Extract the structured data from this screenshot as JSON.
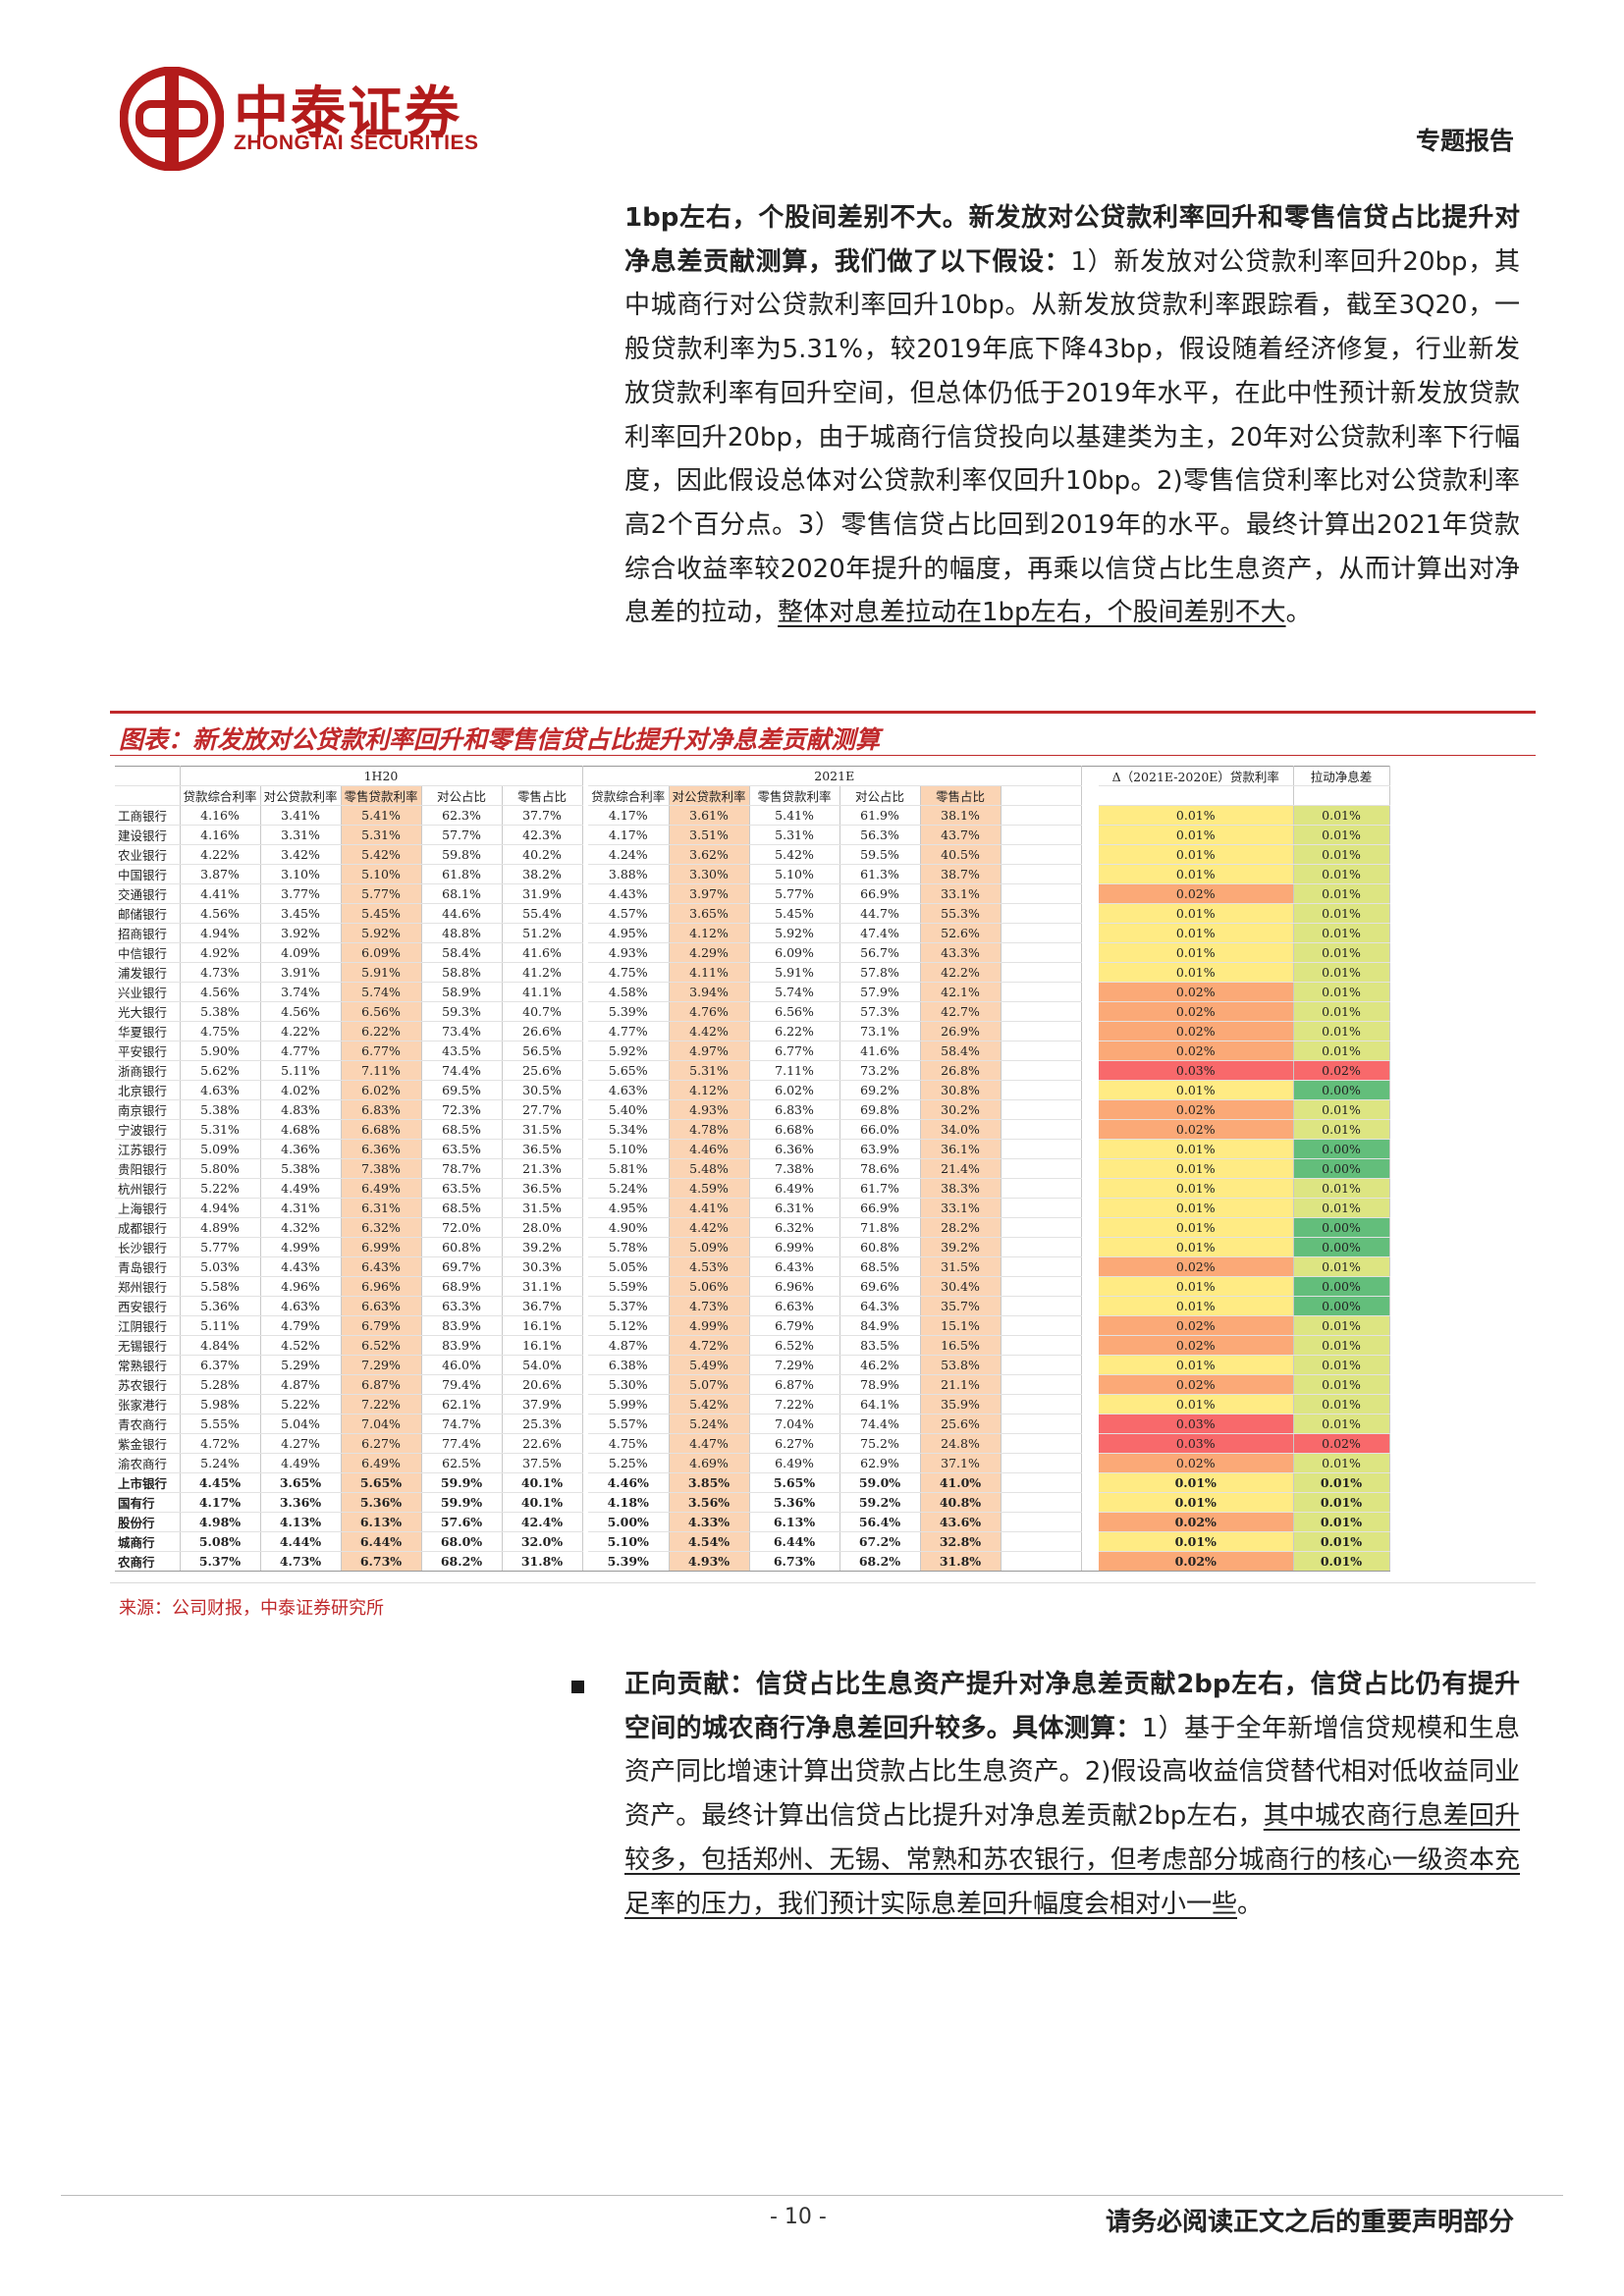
{
  "header": {
    "logo_cn": "中泰证券",
    "logo_en": "ZHONGTAI SECURITIES",
    "report_type": "专题报告"
  },
  "para1": {
    "s1_bold": "1bp左右，个股间差别不大。新发放对公贷款利率回升和零售信贷占比提升对净息差贡献测算，我们做了以下假设：",
    "s2": "1）新发放对公贷款利率回升20bp，其中城商行对公贷款利率回升10bp。从新发放贷款利率跟踪看，截至3Q20，一般贷款利率为5.31%，较2019年底下降43bp，假设随着经济修复，行业新发放贷款利率有回升空间，但总体仍低于2019年水平，在此中性预计新发放贷款利率回升20bp，由于城商行信贷投向以基建类为主，20年对公贷款利率下行幅度，因此假设总体对公贷款利率仅回升10bp。2)零售信贷利率比对公贷款利率高2个百分点。3）零售信贷占比回到2019年的水平。最终计算出2021年贷款综合收益率较2020年提升的幅度，再乘以信贷占比生息资产，从而计算出对净息差的拉动，",
    "s3_underline": "整体对息差拉动在1bp左右，个股间差别不大",
    "s4": "。"
  },
  "figure": {
    "title": "图表：新发放对公贷款利率回升和零售信贷占比提升对净息差贡献测算",
    "source": "来源：公司财报，中泰证券研究所",
    "group_1h20": "1H20",
    "group_2021e": "2021E",
    "col_headers": [
      "贷款综合利率",
      "对公贷款利率",
      "零售贷款利率",
      "对公占比",
      "零售占比"
    ],
    "delta_header": "Δ（2021E-2020E）贷款利率",
    "pull_header": "拉动净息差",
    "rows": [
      {
        "bank": "工商银行",
        "h": [
          "4.16%",
          "3.41%",
          "5.41%",
          "62.3%",
          "37.7%"
        ],
        "e": [
          "4.17%",
          "3.61%",
          "5.41%",
          "61.9%",
          "38.1%"
        ],
        "d": "0.01%",
        "p": "0.01%"
      },
      {
        "bank": "建设银行",
        "h": [
          "4.16%",
          "3.31%",
          "5.31%",
          "57.7%",
          "42.3%"
        ],
        "e": [
          "4.17%",
          "3.51%",
          "5.31%",
          "56.3%",
          "43.7%"
        ],
        "d": "0.01%",
        "p": "0.01%"
      },
      {
        "bank": "农业银行",
        "h": [
          "4.22%",
          "3.42%",
          "5.42%",
          "59.8%",
          "40.2%"
        ],
        "e": [
          "4.24%",
          "3.62%",
          "5.42%",
          "59.5%",
          "40.5%"
        ],
        "d": "0.01%",
        "p": "0.01%"
      },
      {
        "bank": "中国银行",
        "h": [
          "3.87%",
          "3.10%",
          "5.10%",
          "61.8%",
          "38.2%"
        ],
        "e": [
          "3.88%",
          "3.30%",
          "5.10%",
          "61.3%",
          "38.7%"
        ],
        "d": "0.01%",
        "p": "0.01%"
      },
      {
        "bank": "交通银行",
        "h": [
          "4.41%",
          "3.77%",
          "5.77%",
          "68.1%",
          "31.9%"
        ],
        "e": [
          "4.43%",
          "3.97%",
          "5.77%",
          "66.9%",
          "33.1%"
        ],
        "d": "0.02%",
        "p": "0.01%"
      },
      {
        "bank": "邮储银行",
        "h": [
          "4.56%",
          "3.45%",
          "5.45%",
          "44.6%",
          "55.4%"
        ],
        "e": [
          "4.57%",
          "3.65%",
          "5.45%",
          "44.7%",
          "55.3%"
        ],
        "d": "0.01%",
        "p": "0.01%"
      },
      {
        "bank": "招商银行",
        "h": [
          "4.94%",
          "3.92%",
          "5.92%",
          "48.8%",
          "51.2%"
        ],
        "e": [
          "4.95%",
          "4.12%",
          "5.92%",
          "47.4%",
          "52.6%"
        ],
        "d": "0.01%",
        "p": "0.01%"
      },
      {
        "bank": "中信银行",
        "h": [
          "4.92%",
          "4.09%",
          "6.09%",
          "58.4%",
          "41.6%"
        ],
        "e": [
          "4.93%",
          "4.29%",
          "6.09%",
          "56.7%",
          "43.3%"
        ],
        "d": "0.01%",
        "p": "0.01%"
      },
      {
        "bank": "浦发银行",
        "h": [
          "4.73%",
          "3.91%",
          "5.91%",
          "58.8%",
          "41.2%"
        ],
        "e": [
          "4.75%",
          "4.11%",
          "5.91%",
          "57.8%",
          "42.2%"
        ],
        "d": "0.01%",
        "p": "0.01%"
      },
      {
        "bank": "兴业银行",
        "h": [
          "4.56%",
          "3.74%",
          "5.74%",
          "58.9%",
          "41.1%"
        ],
        "e": [
          "4.58%",
          "3.94%",
          "5.74%",
          "57.9%",
          "42.1%"
        ],
        "d": "0.02%",
        "p": "0.01%"
      },
      {
        "bank": "光大银行",
        "h": [
          "5.38%",
          "4.56%",
          "6.56%",
          "59.3%",
          "40.7%"
        ],
        "e": [
          "5.39%",
          "4.76%",
          "6.56%",
          "57.3%",
          "42.7%"
        ],
        "d": "0.02%",
        "p": "0.01%"
      },
      {
        "bank": "华夏银行",
        "h": [
          "4.75%",
          "4.22%",
          "6.22%",
          "73.4%",
          "26.6%"
        ],
        "e": [
          "4.77%",
          "4.42%",
          "6.22%",
          "73.1%",
          "26.9%"
        ],
        "d": "0.02%",
        "p": "0.01%"
      },
      {
        "bank": "平安银行",
        "h": [
          "5.90%",
          "4.77%",
          "6.77%",
          "43.5%",
          "56.5%"
        ],
        "e": [
          "5.92%",
          "4.97%",
          "6.77%",
          "41.6%",
          "58.4%"
        ],
        "d": "0.02%",
        "p": "0.01%"
      },
      {
        "bank": "浙商银行",
        "h": [
          "5.62%",
          "5.11%",
          "7.11%",
          "74.4%",
          "25.6%"
        ],
        "e": [
          "5.65%",
          "5.31%",
          "7.11%",
          "73.2%",
          "26.8%"
        ],
        "d": "0.03%",
        "p": "0.02%"
      },
      {
        "bank": "北京银行",
        "h": [
          "4.63%",
          "4.02%",
          "6.02%",
          "69.5%",
          "30.5%"
        ],
        "e": [
          "4.63%",
          "4.12%",
          "6.02%",
          "69.2%",
          "30.8%"
        ],
        "d": "0.01%",
        "p": "0.00%"
      },
      {
        "bank": "南京银行",
        "h": [
          "5.38%",
          "4.83%",
          "6.83%",
          "72.3%",
          "27.7%"
        ],
        "e": [
          "5.40%",
          "4.93%",
          "6.83%",
          "69.8%",
          "30.2%"
        ],
        "d": "0.02%",
        "p": "0.01%"
      },
      {
        "bank": "宁波银行",
        "h": [
          "5.31%",
          "4.68%",
          "6.68%",
          "68.5%",
          "31.5%"
        ],
        "e": [
          "5.34%",
          "4.78%",
          "6.68%",
          "66.0%",
          "34.0%"
        ],
        "d": "0.02%",
        "p": "0.01%"
      },
      {
        "bank": "江苏银行",
        "h": [
          "5.09%",
          "4.36%",
          "6.36%",
          "63.5%",
          "36.5%"
        ],
        "e": [
          "5.10%",
          "4.46%",
          "6.36%",
          "63.9%",
          "36.1%"
        ],
        "d": "0.01%",
        "p": "0.00%"
      },
      {
        "bank": "贵阳银行",
        "h": [
          "5.80%",
          "5.38%",
          "7.38%",
          "78.7%",
          "21.3%"
        ],
        "e": [
          "5.81%",
          "5.48%",
          "7.38%",
          "78.6%",
          "21.4%"
        ],
        "d": "0.01%",
        "p": "0.00%"
      },
      {
        "bank": "杭州银行",
        "h": [
          "5.22%",
          "4.49%",
          "6.49%",
          "63.5%",
          "36.5%"
        ],
        "e": [
          "5.24%",
          "4.59%",
          "6.49%",
          "61.7%",
          "38.3%"
        ],
        "d": "0.01%",
        "p": "0.01%"
      },
      {
        "bank": "上海银行",
        "h": [
          "4.94%",
          "4.31%",
          "6.31%",
          "68.5%",
          "31.5%"
        ],
        "e": [
          "4.95%",
          "4.41%",
          "6.31%",
          "66.9%",
          "33.1%"
        ],
        "d": "0.01%",
        "p": "0.01%"
      },
      {
        "bank": "成都银行",
        "h": [
          "4.89%",
          "4.32%",
          "6.32%",
          "72.0%",
          "28.0%"
        ],
        "e": [
          "4.90%",
          "4.42%",
          "6.32%",
          "71.8%",
          "28.2%"
        ],
        "d": "0.01%",
        "p": "0.00%"
      },
      {
        "bank": "长沙银行",
        "h": [
          "5.77%",
          "4.99%",
          "6.99%",
          "60.8%",
          "39.2%"
        ],
        "e": [
          "5.78%",
          "5.09%",
          "6.99%",
          "60.8%",
          "39.2%"
        ],
        "d": "0.01%",
        "p": "0.00%"
      },
      {
        "bank": "青岛银行",
        "h": [
          "5.03%",
          "4.43%",
          "6.43%",
          "69.7%",
          "30.3%"
        ],
        "e": [
          "5.05%",
          "4.53%",
          "6.43%",
          "68.5%",
          "31.5%"
        ],
        "d": "0.02%",
        "p": "0.01%"
      },
      {
        "bank": "郑州银行",
        "h": [
          "5.58%",
          "4.96%",
          "6.96%",
          "68.9%",
          "31.1%"
        ],
        "e": [
          "5.59%",
          "5.06%",
          "6.96%",
          "69.6%",
          "30.4%"
        ],
        "d": "0.01%",
        "p": "0.00%"
      },
      {
        "bank": "西安银行",
        "h": [
          "5.36%",
          "4.63%",
          "6.63%",
          "63.3%",
          "36.7%"
        ],
        "e": [
          "5.37%",
          "4.73%",
          "6.63%",
          "64.3%",
          "35.7%"
        ],
        "d": "0.01%",
        "p": "0.00%"
      },
      {
        "bank": "江阴银行",
        "h": [
          "5.11%",
          "4.79%",
          "6.79%",
          "83.9%",
          "16.1%"
        ],
        "e": [
          "5.12%",
          "4.99%",
          "6.79%",
          "84.9%",
          "15.1%"
        ],
        "d": "0.02%",
        "p": "0.01%"
      },
      {
        "bank": "无锡银行",
        "h": [
          "4.84%",
          "4.52%",
          "6.52%",
          "83.9%",
          "16.1%"
        ],
        "e": [
          "4.87%",
          "4.72%",
          "6.52%",
          "83.5%",
          "16.5%"
        ],
        "d": "0.02%",
        "p": "0.01%"
      },
      {
        "bank": "常熟银行",
        "h": [
          "6.37%",
          "5.29%",
          "7.29%",
          "46.0%",
          "54.0%"
        ],
        "e": [
          "6.38%",
          "5.49%",
          "7.29%",
          "46.2%",
          "53.8%"
        ],
        "d": "0.01%",
        "p": "0.01%"
      },
      {
        "bank": "苏农银行",
        "h": [
          "5.28%",
          "4.87%",
          "6.87%",
          "79.4%",
          "20.6%"
        ],
        "e": [
          "5.30%",
          "5.07%",
          "6.87%",
          "78.9%",
          "21.1%"
        ],
        "d": "0.02%",
        "p": "0.01%"
      },
      {
        "bank": "张家港行",
        "h": [
          "5.98%",
          "5.22%",
          "7.22%",
          "62.1%",
          "37.9%"
        ],
        "e": [
          "5.99%",
          "5.42%",
          "7.22%",
          "64.1%",
          "35.9%"
        ],
        "d": "0.01%",
        "p": "0.01%"
      },
      {
        "bank": "青农商行",
        "h": [
          "5.55%",
          "5.04%",
          "7.04%",
          "74.7%",
          "25.3%"
        ],
        "e": [
          "5.57%",
          "5.24%",
          "7.04%",
          "74.4%",
          "25.6%"
        ],
        "d": "0.03%",
        "p": "0.01%"
      },
      {
        "bank": "紫金银行",
        "h": [
          "4.72%",
          "4.27%",
          "6.27%",
          "77.4%",
          "22.6%"
        ],
        "e": [
          "4.75%",
          "4.47%",
          "6.27%",
          "75.2%",
          "24.8%"
        ],
        "d": "0.03%",
        "p": "0.02%"
      },
      {
        "bank": "渝农商行",
        "h": [
          "5.24%",
          "4.49%",
          "6.49%",
          "62.5%",
          "37.5%"
        ],
        "e": [
          "5.25%",
          "4.69%",
          "6.49%",
          "62.9%",
          "37.1%"
        ],
        "d": "0.02%",
        "p": "0.01%"
      },
      {
        "bank": "上市银行",
        "h": [
          "4.45%",
          "3.65%",
          "5.65%",
          "59.9%",
          "40.1%"
        ],
        "e": [
          "4.46%",
          "3.85%",
          "5.65%",
          "59.0%",
          "41.0%"
        ],
        "d": "0.01%",
        "p": "0.01%",
        "bold": true
      },
      {
        "bank": "国有行",
        "h": [
          "4.17%",
          "3.36%",
          "5.36%",
          "59.9%",
          "40.1%"
        ],
        "e": [
          "4.18%",
          "3.56%",
          "5.36%",
          "59.2%",
          "40.8%"
        ],
        "d": "0.01%",
        "p": "0.01%",
        "bold": true
      },
      {
        "bank": "股份行",
        "h": [
          "4.98%",
          "4.13%",
          "6.13%",
          "57.6%",
          "42.4%"
        ],
        "e": [
          "5.00%",
          "4.33%",
          "6.13%",
          "56.4%",
          "43.6%"
        ],
        "d": "0.02%",
        "p": "0.01%",
        "bold": true
      },
      {
        "bank": "城商行",
        "h": [
          "5.08%",
          "4.44%",
          "6.44%",
          "68.0%",
          "32.0%"
        ],
        "e": [
          "5.10%",
          "4.54%",
          "6.44%",
          "67.2%",
          "32.8%"
        ],
        "d": "0.01%",
        "p": "0.01%",
        "bold": true
      },
      {
        "bank": "农商行",
        "h": [
          "5.37%",
          "4.73%",
          "6.73%",
          "68.2%",
          "31.8%"
        ],
        "e": [
          "5.39%",
          "4.93%",
          "6.73%",
          "68.2%",
          "31.8%"
        ],
        "d": "0.02%",
        "p": "0.01%",
        "bold": true
      }
    ]
  },
  "para2": {
    "s1_bold": "正向贡献：信贷占比生息资产提升对净息差贡献2bp左右，信贷占比仍有提升空间的城农商行净息差回升较多。具体测算：",
    "s2": "1）基于全年新增信贷规模和生息资产同比增速计算出贷款占比生息资产。2)假设高收益信贷替代相对低收益同业资产。最终计算出信贷占比提升对净息差贡献2bp左右，",
    "s3_underline": "其中城农商行息差回升较多，包括郑州、无锡、常熟和苏农银行，但考虑部分城商行的核心一级资本充足率的压力，我们预计实际息差回升幅度会相对小一些",
    "s4": "。"
  },
  "footer": {
    "page_number": "- 10 -",
    "disclaimer": "请务必阅读正文之后的重要声明部分"
  }
}
